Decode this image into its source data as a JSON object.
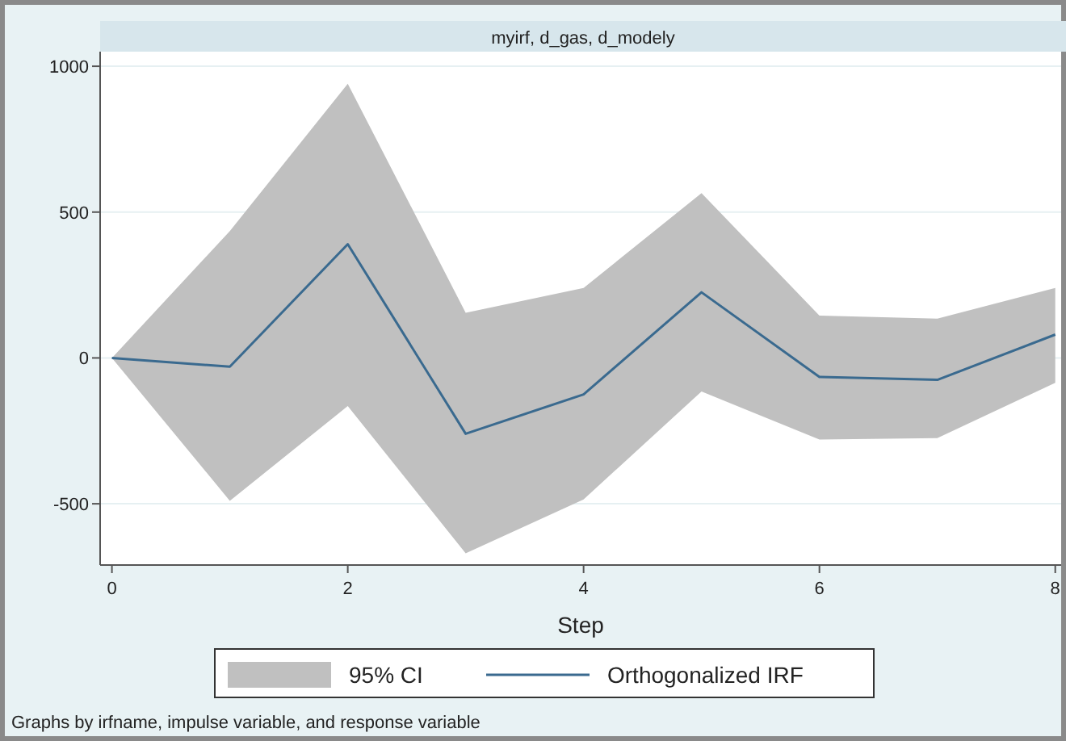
{
  "chart_data": {
    "type": "line",
    "title": "myirf, d_gas, d_modely",
    "xlabel": "Step",
    "x": [
      0,
      1,
      2,
      3,
      4,
      5,
      6,
      7,
      8
    ],
    "xlim": [
      -0.1,
      8.05
    ],
    "xticks": [
      0,
      2,
      4,
      6,
      8
    ],
    "ylim": [
      -710,
      1050
    ],
    "yticks": [
      -500,
      0,
      500,
      1000
    ],
    "grid": "y",
    "legend": "bottom",
    "marker": "none",
    "line_style": "solid",
    "series": [
      {
        "name": "95% CI",
        "type": "area",
        "color": "#c0c0c0",
        "values": [
          null,
          null,
          null,
          null,
          null,
          null,
          null,
          null,
          null
        ],
        "lower": [
          0,
          -490,
          -165,
          -670,
          -485,
          -115,
          -280,
          -275,
          -85
        ],
        "upper": [
          0,
          435,
          940,
          155,
          240,
          565,
          145,
          135,
          240
        ]
      },
      {
        "name": "Orthogonalized IRF",
        "type": "line",
        "color": "#3a6a8f",
        "values": [
          0,
          -30,
          390,
          -260,
          -125,
          225,
          -65,
          -75,
          80
        ]
      }
    ],
    "annotations": [
      "Graphs by irfname, impulse variable, and response variable"
    ]
  }
}
